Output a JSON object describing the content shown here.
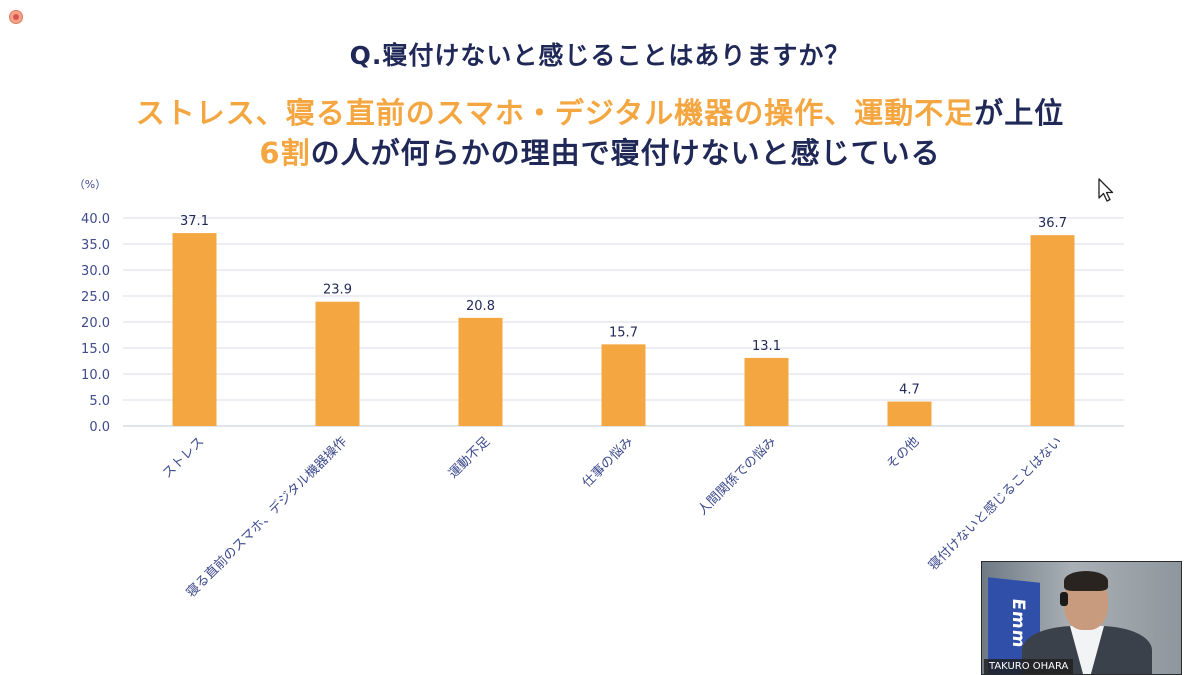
{
  "header": {
    "question": "Q.寝付けないと感じることはありますか？",
    "headline_line1_orange": "ストレス、寝る直前のスマホ・デジタル機器の操作、運動不足",
    "headline_line1_navy": "が上位",
    "headline_line2_orange": "6割",
    "headline_line2_navy": "の人が何らかの理由で寝付けないと感じている"
  },
  "colors": {
    "bar": "#f4a641",
    "navy": "#1f2857",
    "axis_text": "#3e4a8c",
    "grid": "#d9dce8"
  },
  "chart_data": {
    "type": "bar",
    "unit_label": "（%）",
    "categories": [
      "ストレス",
      "寝る直前のスマホ、デジタル機器操作",
      "運動不足",
      "仕事の悩み",
      "人間関係での悩み",
      "その他",
      "寝付けないと感じることはない"
    ],
    "values": [
      37.1,
      23.9,
      20.8,
      15.7,
      13.1,
      4.7,
      36.7
    ],
    "value_labels": [
      "37.1",
      "23.9",
      "20.8",
      "15.7",
      "13.1",
      "4.7",
      "36.7"
    ],
    "ylim": [
      0,
      40
    ],
    "yticks": [
      "0.0",
      "5.0",
      "10.0",
      "15.0",
      "20.0",
      "25.0",
      "30.0",
      "35.0",
      "40.0"
    ],
    "grid": true,
    "legend": "none"
  },
  "webcam": {
    "name": "TAKURO OHARA",
    "banner_text": "Emm"
  },
  "icons": {
    "record": "record-indicator-icon",
    "cursor": "mouse-cursor-icon"
  }
}
